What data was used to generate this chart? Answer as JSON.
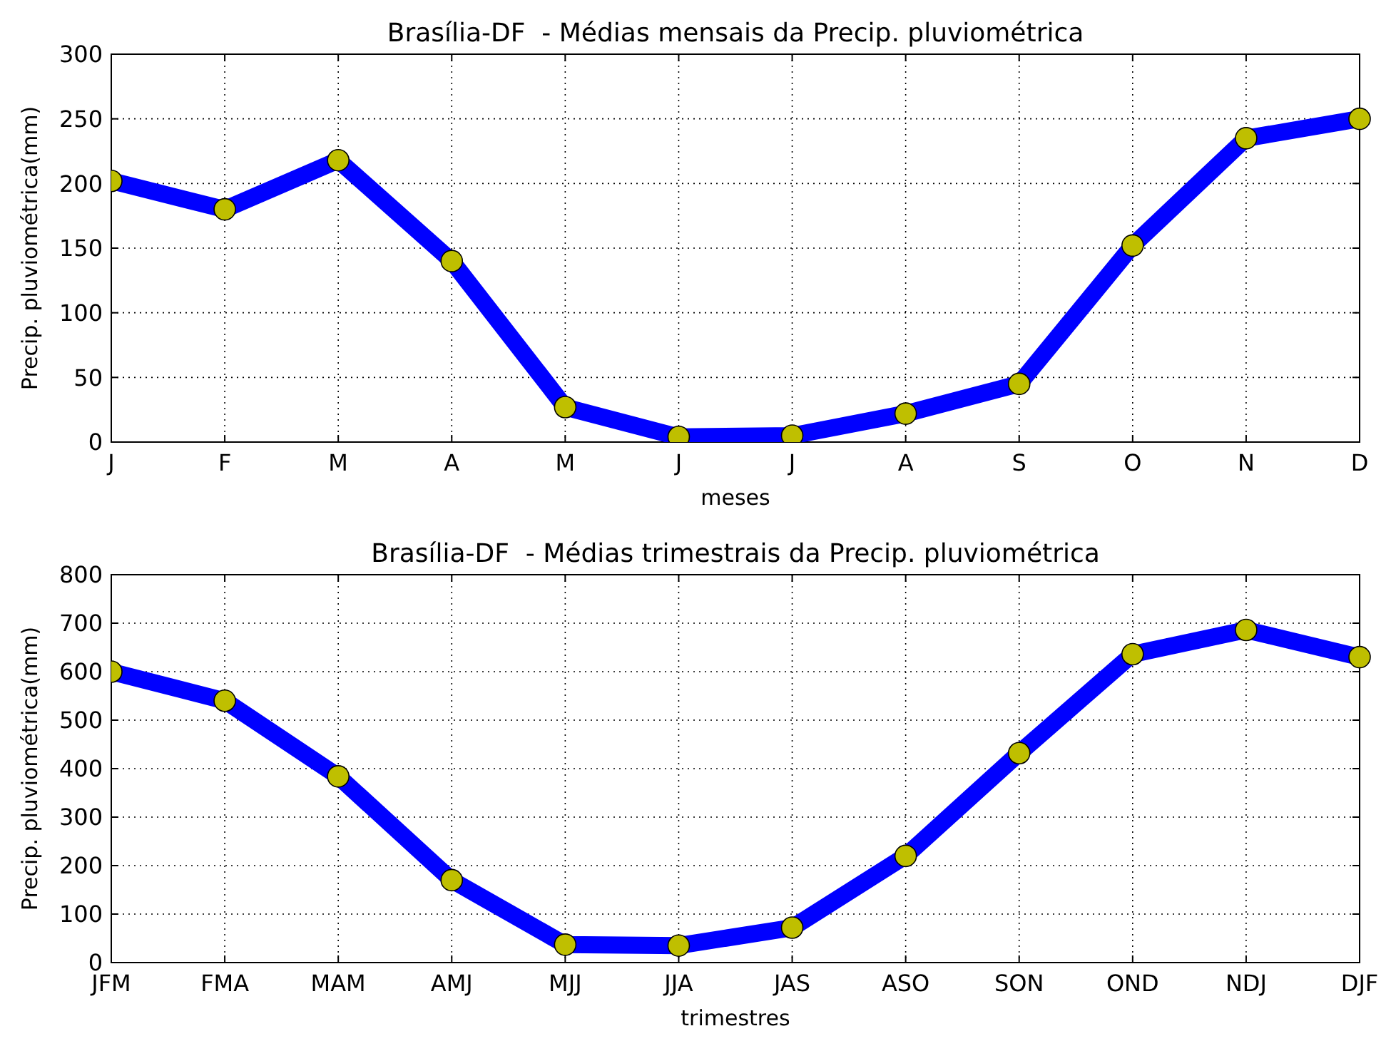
{
  "chart_data": [
    {
      "type": "line",
      "title": "Brasília-DF  - Médias mensais da Precip. pluviométrica",
      "xlabel": "meses",
      "ylabel": "Precip. pluviométrica(mm)",
      "categories": [
        "J",
        "F",
        "M",
        "A",
        "M",
        "J",
        "J",
        "A",
        "S",
        "O",
        "N",
        "D"
      ],
      "series": [
        {
          "color": "#0000ff",
          "values": [
            202,
            180,
            218,
            140,
            27,
            4,
            5,
            22,
            45,
            152,
            235,
            250
          ]
        }
      ],
      "ylim": [
        0,
        300
      ],
      "yticks": [
        0,
        50,
        100,
        150,
        200,
        250,
        300
      ],
      "grid": true,
      "marker": "circle",
      "line_style": "solid"
    },
    {
      "type": "line",
      "title": "Brasília-DF  - Médias trimestrais da Precip. pluviométrica",
      "xlabel": "trimestres",
      "ylabel": "Precip. pluviométrica(mm)",
      "categories": [
        "JFM",
        "FMA",
        "MAM",
        "AMJ",
        "MJJ",
        "JJA",
        "JAS",
        "ASO",
        "SON",
        "OND",
        "NDJ",
        "DJF"
      ],
      "series": [
        {
          "color": "#0000ff",
          "values": [
            600,
            540,
            384,
            170,
            37,
            35,
            72,
            220,
            432,
            636,
            686,
            630
          ]
        }
      ],
      "ylim": [
        0,
        800
      ],
      "yticks": [
        0,
        100,
        200,
        300,
        400,
        500,
        600,
        700,
        800
      ],
      "grid": true,
      "marker": "circle",
      "line_style": "solid"
    }
  ]
}
